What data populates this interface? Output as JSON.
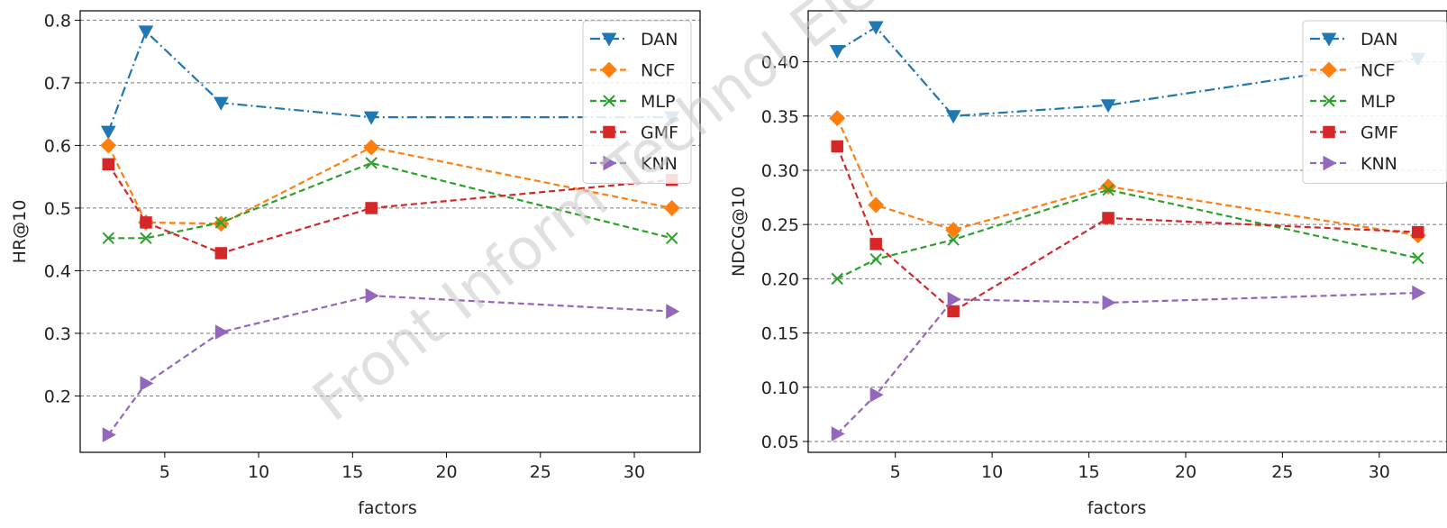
{
  "watermark": "Front Inform Technol Elec",
  "chart_data": [
    {
      "type": "line",
      "xlabel": "factors",
      "ylabel": "HR@10",
      "x": [
        2,
        4,
        8,
        16,
        32
      ],
      "xlim": [
        0.5,
        33.5
      ],
      "ylim": [
        0.11,
        0.815
      ],
      "xticks": [
        5,
        10,
        15,
        20,
        25,
        30
      ],
      "yticks": [
        0.2,
        0.3,
        0.4,
        0.5,
        0.6,
        0.7,
        0.8
      ],
      "ytick_labels": [
        "0.2",
        "0.3",
        "0.4",
        "0.5",
        "0.6",
        "0.7",
        "0.8"
      ],
      "grid": "horizontal dashed",
      "legend_position": "top-right",
      "series": [
        {
          "name": "DAN",
          "color": "#1f77b4",
          "marker": "triangle-down",
          "linestyle": "dashdot",
          "values": [
            0.622,
            0.782,
            0.668,
            0.645,
            0.645
          ]
        },
        {
          "name": "NCF",
          "color": "#ff7f0e",
          "marker": "diamond",
          "linestyle": "dashed",
          "values": [
            0.6,
            0.477,
            0.475,
            0.597,
            0.5
          ]
        },
        {
          "name": "MLP",
          "color": "#2ca02c",
          "marker": "x",
          "linestyle": "dashed",
          "values": [
            0.452,
            0.452,
            0.477,
            0.572,
            0.452
          ]
        },
        {
          "name": "GMF",
          "color": "#d62728",
          "marker": "square",
          "linestyle": "dashed",
          "values": [
            0.57,
            0.477,
            0.428,
            0.5,
            0.545
          ]
        },
        {
          "name": "KNN",
          "color": "#9467bd",
          "marker": "triangle-right",
          "linestyle": "dashed",
          "values": [
            0.138,
            0.22,
            0.302,
            0.36,
            0.335
          ]
        }
      ]
    },
    {
      "type": "line",
      "xlabel": "factors",
      "ylabel": "NDCG@10",
      "x": [
        2,
        4,
        8,
        16,
        32
      ],
      "xlim": [
        0.5,
        33.5
      ],
      "ylim": [
        0.04,
        0.447
      ],
      "xticks": [
        5,
        10,
        15,
        20,
        25,
        30
      ],
      "yticks": [
        0.05,
        0.1,
        0.15,
        0.2,
        0.25,
        0.3,
        0.35,
        0.4
      ],
      "ytick_labels": [
        "0.05",
        "0.10",
        "0.15",
        "0.20",
        "0.25",
        "0.30",
        "0.35",
        "0.40"
      ],
      "grid": "horizontal dashed",
      "legend_position": "top-right",
      "series": [
        {
          "name": "DAN",
          "color": "#1f77b4",
          "marker": "triangle-down",
          "linestyle": "dashdot",
          "values": [
            0.41,
            0.432,
            0.35,
            0.36,
            0.403
          ]
        },
        {
          "name": "NCF",
          "color": "#ff7f0e",
          "marker": "diamond",
          "linestyle": "dashed",
          "values": [
            0.348,
            0.268,
            0.245,
            0.285,
            0.24
          ]
        },
        {
          "name": "MLP",
          "color": "#2ca02c",
          "marker": "x",
          "linestyle": "dashed",
          "values": [
            0.2,
            0.218,
            0.236,
            0.282,
            0.219
          ]
        },
        {
          "name": "GMF",
          "color": "#d62728",
          "marker": "square",
          "linestyle": "dashed",
          "values": [
            0.322,
            0.232,
            0.17,
            0.256,
            0.243
          ]
        },
        {
          "name": "KNN",
          "color": "#9467bd",
          "marker": "triangle-right",
          "linestyle": "dashed",
          "values": [
            0.057,
            0.093,
            0.181,
            0.178,
            0.187
          ]
        }
      ]
    }
  ]
}
